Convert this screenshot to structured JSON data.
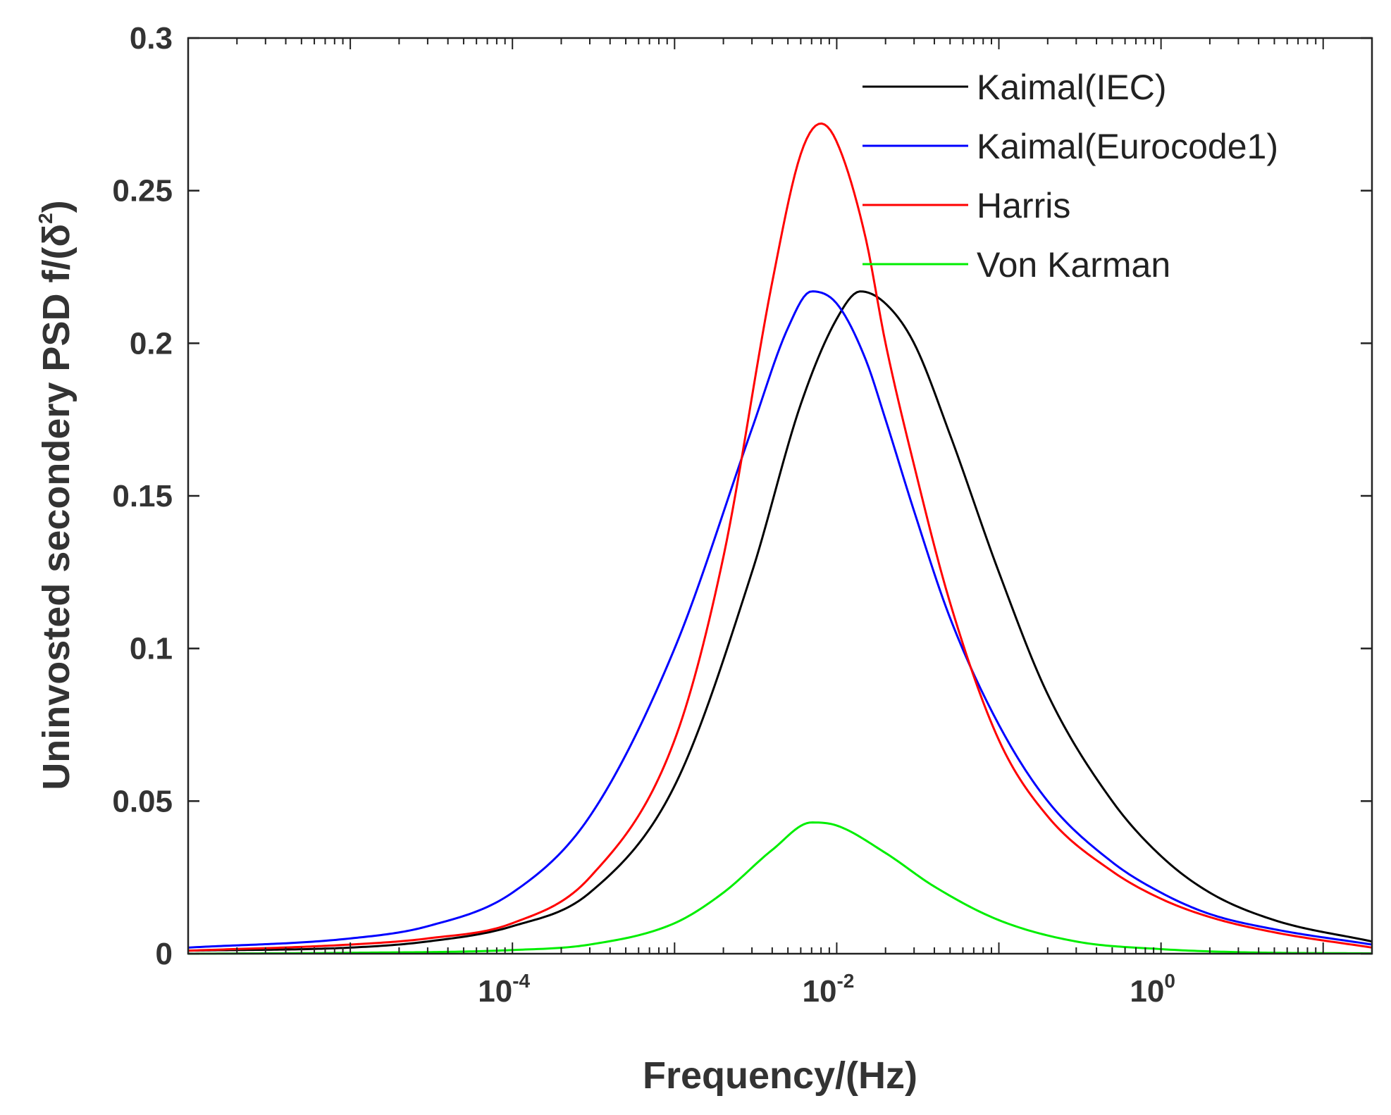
{
  "chart_data": {
    "type": "line",
    "xscale": "log",
    "xlim": [
      1e-06,
      20
    ],
    "ylim": [
      0,
      0.3
    ],
    "xlabel": "Frequency/(Hz)",
    "ylabel": {
      "main": "Uninvosted secondery PSD f/(δ",
      "sup": "2",
      "close": ")"
    },
    "yticks": [
      {
        "value": 0,
        "label": "0"
      },
      {
        "value": 0.05,
        "label": "0.05"
      },
      {
        "value": 0.1,
        "label": "0.1"
      },
      {
        "value": 0.15,
        "label": "0.15"
      },
      {
        "value": 0.2,
        "label": "0.2"
      },
      {
        "value": 0.25,
        "label": "0.25"
      },
      {
        "value": 0.3,
        "label": "0.3"
      }
    ],
    "xticks": [
      {
        "value": 0.0001,
        "base": "10",
        "exp": "-4"
      },
      {
        "value": 0.01,
        "base": "10",
        "exp": "-2"
      },
      {
        "value": 1,
        "base": "10",
        "exp": "0"
      }
    ],
    "legend_position": "top-right",
    "series": [
      {
        "name": "Kaimal(IEC)",
        "color": "#000000",
        "x": [
          1e-06,
          1e-05,
          3e-05,
          0.0001,
          0.0003,
          0.001,
          0.003,
          0.006,
          0.01,
          0.014,
          0.02,
          0.03,
          0.05,
          0.1,
          0.2,
          0.5,
          1,
          2,
          5,
          20
        ],
        "y": [
          0.001,
          0.002,
          0.004,
          0.009,
          0.02,
          0.055,
          0.125,
          0.18,
          0.208,
          0.217,
          0.213,
          0.2,
          0.17,
          0.125,
          0.085,
          0.05,
          0.032,
          0.02,
          0.011,
          0.004
        ]
      },
      {
        "name": "Kaimal(Eurocode1)",
        "color": "#0000ff",
        "x": [
          1e-06,
          1e-05,
          3e-05,
          0.0001,
          0.0003,
          0.001,
          0.003,
          0.005,
          0.007,
          0.01,
          0.015,
          0.02,
          0.03,
          0.05,
          0.1,
          0.2,
          0.5,
          1,
          2,
          5,
          20
        ],
        "y": [
          0.002,
          0.005,
          0.009,
          0.02,
          0.045,
          0.1,
          0.172,
          0.205,
          0.217,
          0.213,
          0.195,
          0.175,
          0.145,
          0.11,
          0.075,
          0.05,
          0.03,
          0.02,
          0.013,
          0.008,
          0.003
        ]
      },
      {
        "name": "Harris",
        "color": "#ff0000",
        "x": [
          1e-06,
          1e-05,
          3e-05,
          0.0001,
          0.0003,
          0.001,
          0.002,
          0.004,
          0.006,
          0.008,
          0.01,
          0.015,
          0.02,
          0.03,
          0.05,
          0.1,
          0.2,
          0.5,
          1,
          2,
          5,
          20
        ],
        "y": [
          0.001,
          0.003,
          0.005,
          0.01,
          0.025,
          0.07,
          0.13,
          0.22,
          0.262,
          0.272,
          0.266,
          0.235,
          0.2,
          0.16,
          0.115,
          0.07,
          0.045,
          0.027,
          0.018,
          0.012,
          0.007,
          0.002
        ]
      },
      {
        "name": "Von Karman",
        "color": "#00ee00",
        "x": [
          1e-06,
          1e-05,
          0.0001,
          0.0003,
          0.001,
          0.002,
          0.004,
          0.007,
          0.01,
          0.02,
          0.04,
          0.1,
          0.3,
          1,
          3,
          20
        ],
        "y": [
          0.0,
          0.0003,
          0.0012,
          0.003,
          0.01,
          0.02,
          0.034,
          0.043,
          0.042,
          0.033,
          0.022,
          0.011,
          0.004,
          0.0015,
          0.0005,
          0.0001
        ]
      }
    ]
  }
}
